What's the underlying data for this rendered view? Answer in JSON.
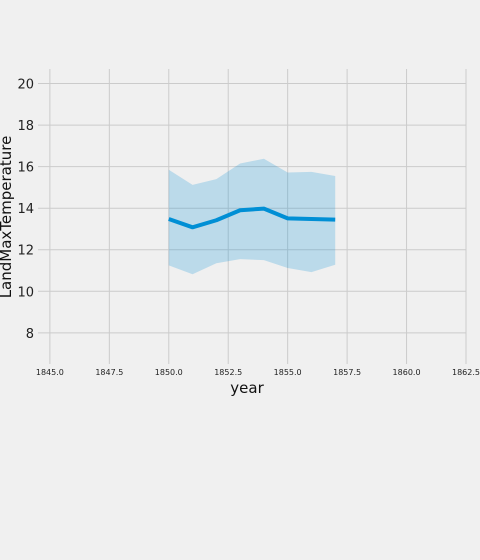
{
  "chart_data": {
    "type": "line",
    "title": "",
    "xlabel": "year",
    "ylabel": "LandMaxTemperature",
    "xlim": [
      1844.5,
      1862.5
    ],
    "ylim": [
      6.5,
      20.7
    ],
    "x_ticks": [
      1845.0,
      1847.5,
      1850.0,
      1852.5,
      1855.0,
      1857.5,
      1860.0,
      1862.5
    ],
    "x_tick_labels": [
      "1845.0",
      "1847.5",
      "1850.0",
      "1852.5",
      "1855.0",
      "1857.5",
      "1860.0",
      "1862.5"
    ],
    "y_ticks": [
      8,
      10,
      12,
      14,
      16,
      18,
      20
    ],
    "y_tick_labels": [
      "8",
      "10",
      "12",
      "14",
      "16",
      "18",
      "20"
    ],
    "grid": true,
    "series": [
      {
        "x": [
          1850,
          1851,
          1852,
          1853,
          1854,
          1855,
          1856,
          1857
        ],
        "y": [
          13.48,
          13.08,
          13.42,
          13.9,
          13.98,
          13.51,
          13.48,
          13.45
        ],
        "lower": [
          11.25,
          10.82,
          11.35,
          11.55,
          11.5,
          11.12,
          10.92,
          11.28
        ],
        "upper": [
          15.85,
          15.12,
          15.4,
          16.15,
          16.38,
          15.72,
          15.75,
          15.55
        ],
        "color": "#008fd5",
        "band_color": "#008fd5"
      }
    ]
  }
}
